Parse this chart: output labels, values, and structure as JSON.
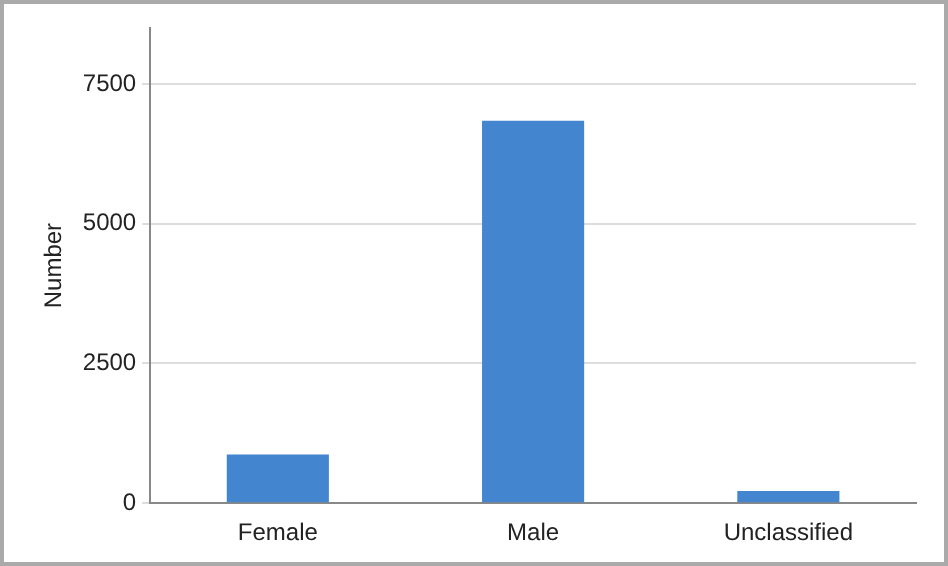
{
  "chart_data": {
    "type": "bar",
    "ylabel": "Number",
    "categories": [
      "Female",
      "Male",
      "Unclassified"
    ],
    "values": [
      870,
      6840,
      220
    ],
    "color": "#4385cf",
    "ylim": [
      0,
      8500
    ],
    "yticks": [
      0,
      2500,
      5000,
      7500
    ],
    "grid": "y",
    "legend": false
  }
}
